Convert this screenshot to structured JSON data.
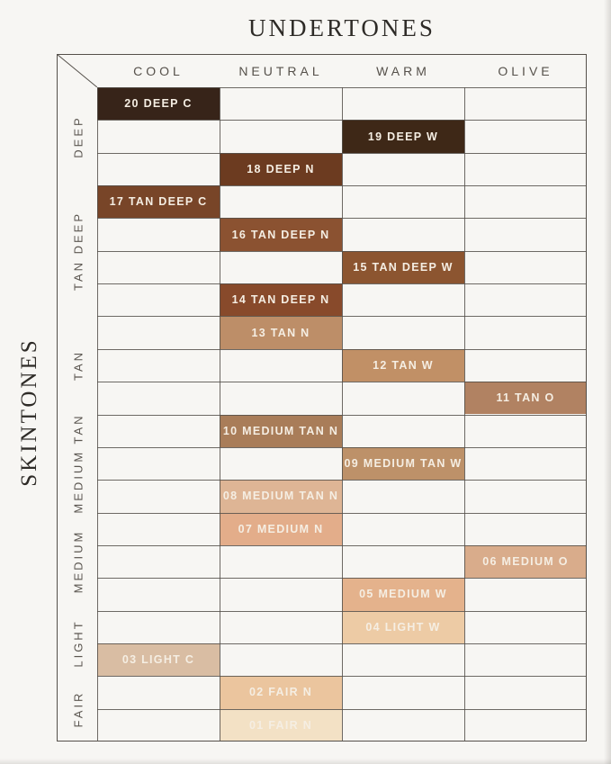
{
  "title": "UNDERTONES",
  "side_title": "SKINTONES",
  "colors": {
    "background": "#f7f6f3",
    "grid_line": "#55504a",
    "title_text": "#2e2b27",
    "header_text": "#56514b",
    "group_label_text": "#5b5650",
    "cell_text": "#f5eee3"
  },
  "chart_data": {
    "type": "heatmap",
    "title": "UNDERTONES",
    "x_axis": {
      "label": "UNDERTONES",
      "categories": [
        "COOL",
        "NEUTRAL",
        "WARM",
        "OLIVE"
      ]
    },
    "y_axis": {
      "label": "SKINTONES",
      "groups": [
        {
          "label": "DEEP",
          "rows": 3
        },
        {
          "label": "TAN DEEP",
          "rows": 4
        },
        {
          "label": "TAN",
          "rows": 3
        },
        {
          "label": "MEDIUM TAN",
          "rows": 3
        },
        {
          "label": "MEDIUM",
          "rows": 3
        },
        {
          "label": "LIGHT",
          "rows": 2
        },
        {
          "label": "FAIR",
          "rows": 2
        }
      ]
    },
    "rows": 20,
    "legend": "off",
    "grid": "on",
    "cells": [
      {
        "row": 1,
        "column": "COOL",
        "label": "20 DEEP C",
        "color": "#372419"
      },
      {
        "row": 2,
        "column": "WARM",
        "label": "19 DEEP W",
        "color": "#3e2817"
      },
      {
        "row": 3,
        "column": "NEUTRAL",
        "label": "18 DEEP N",
        "color": "#6c3b20"
      },
      {
        "row": 4,
        "column": "COOL",
        "label": "17 TAN DEEP C",
        "color": "#784528"
      },
      {
        "row": 5,
        "column": "NEUTRAL",
        "label": "16 TAN DEEP N",
        "color": "#8b5231"
      },
      {
        "row": 6,
        "column": "WARM",
        "label": "15 TAN DEEP W",
        "color": "#8c5530"
      },
      {
        "row": 7,
        "column": "NEUTRAL",
        "label": "14 TAN DEEP N",
        "color": "#884a2b"
      },
      {
        "row": 8,
        "column": "NEUTRAL",
        "label": "13 TAN N",
        "color": "#bd8e68"
      },
      {
        "row": 9,
        "column": "WARM",
        "label": "12 TAN W",
        "color": "#c19066"
      },
      {
        "row": 10,
        "column": "OLIVE",
        "label": "11 TAN O",
        "color": "#b18262"
      },
      {
        "row": 11,
        "column": "NEUTRAL",
        "label": "10 MEDIUM TAN N",
        "color": "#a97d59"
      },
      {
        "row": 12,
        "column": "WARM",
        "label": "09 MEDIUM TAN W",
        "color": "#bd9169"
      },
      {
        "row": 13,
        "column": "NEUTRAL",
        "label": "08 MEDIUM TAN N",
        "color": "#deb595"
      },
      {
        "row": 14,
        "column": "NEUTRAL",
        "label": "07 MEDIUM N",
        "color": "#e3ad8a"
      },
      {
        "row": 15,
        "column": "OLIVE",
        "label": "06 MEDIUM O",
        "color": "#d9ac8b"
      },
      {
        "row": 16,
        "column": "WARM",
        "label": "05 MEDIUM W",
        "color": "#e4b28c"
      },
      {
        "row": 17,
        "column": "WARM",
        "label": "04 LIGHT W",
        "color": "#edcba5"
      },
      {
        "row": 18,
        "column": "COOL",
        "label": "03 LIGHT C",
        "color": "#d9bda3"
      },
      {
        "row": 19,
        "column": "NEUTRAL",
        "label": "02 FAIR N",
        "color": "#ebc59e"
      },
      {
        "row": 20,
        "column": "NEUTRAL",
        "label": "01 FAIR N",
        "color": "#f3e1c5"
      }
    ]
  }
}
